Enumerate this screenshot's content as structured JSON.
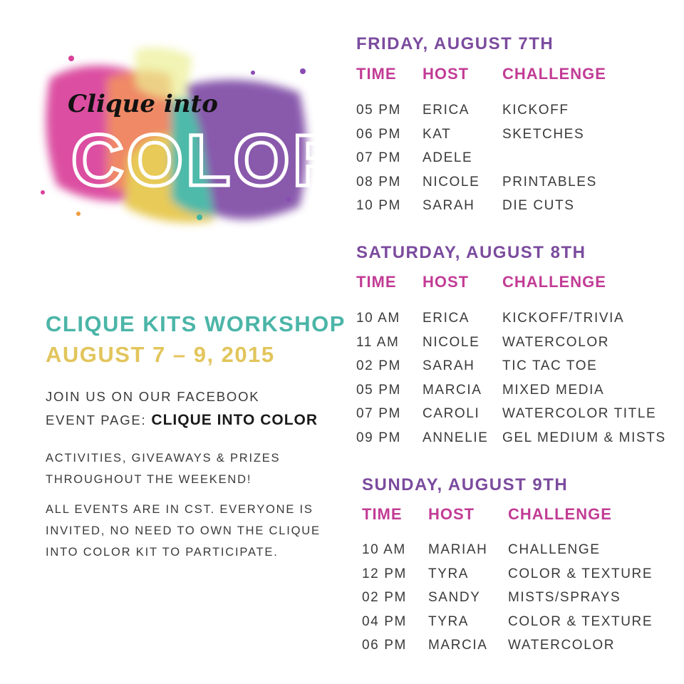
{
  "logo": {
    "script_text": "Clique into",
    "big_text": "COLOR"
  },
  "info": {
    "title": "CLIQUE KITS WORKSHOP",
    "dates": "AUGUST 7 – 9, 2015",
    "join_line1": "JOIN US ON OUR FACEBOOK",
    "join_line2_prefix": "EVENT PAGE:",
    "join_line2_event": "CLIQUE INTO COLOR",
    "activities_line1": "ACTIVITIES, GIVEAWAYS & PRIZES",
    "activities_line2": "THROUGHOUT THE WEEKEND!",
    "note_line1": "ALL EVENTS ARE IN CST. EVERYONE IS",
    "note_line2": "INVITED, NO NEED TO OWN THE CLIQUE",
    "note_line3": "INTO COLOR KIT TO PARTICIPATE."
  },
  "columns": {
    "time": "TIME",
    "host": "HOST",
    "challenge": "CHALLENGE"
  },
  "schedule": [
    {
      "day": "FRIDAY, AUGUST 7TH",
      "rows": [
        [
          "05 PM",
          "ERICA",
          "KICKOFF"
        ],
        [
          "06 PM",
          "KAT",
          "SKETCHES"
        ],
        [
          "07 PM",
          "ADELE",
          ""
        ],
        [
          "08 PM",
          "NICOLE",
          "PRINTABLES"
        ],
        [
          "10 PM",
          "SARAH",
          "DIE CUTS"
        ]
      ]
    },
    {
      "day": "SATURDAY, AUGUST 8TH",
      "rows": [
        [
          "10 AM",
          "ERICA",
          "KICKOFF/TRIVIA"
        ],
        [
          "11 AM",
          "NICOLE",
          "WATERCOLOR"
        ],
        [
          "02 PM",
          "SARAH",
          "TIC TAC TOE"
        ],
        [
          "05 PM",
          "MARCIA",
          "MIXED MEDIA"
        ],
        [
          "07 PM",
          "CAROLI",
          "WATERCOLOR TITLE"
        ],
        [
          "09 PM",
          "ANNELIE",
          "GEL MEDIUM & MISTS"
        ]
      ]
    },
    {
      "day": "SUNDAY, AUGUST 9TH",
      "rows": [
        [
          "10 AM",
          "MARIAH",
          "CHALLENGE"
        ],
        [
          "12 PM",
          "TYRA",
          "COLOR & TEXTURE"
        ],
        [
          "02 PM",
          "SANDY",
          "MISTS/SPRAYS"
        ],
        [
          "04 PM",
          "TYRA",
          "COLOR & TEXTURE"
        ],
        [
          "06 PM",
          "MARCIA",
          "WATERCOLOR"
        ]
      ]
    }
  ],
  "colors": {
    "day_heading": "#7b4b9e",
    "column_heading": "#c23c95",
    "title": "#4bb5a8",
    "dates": "#e2c55c"
  }
}
